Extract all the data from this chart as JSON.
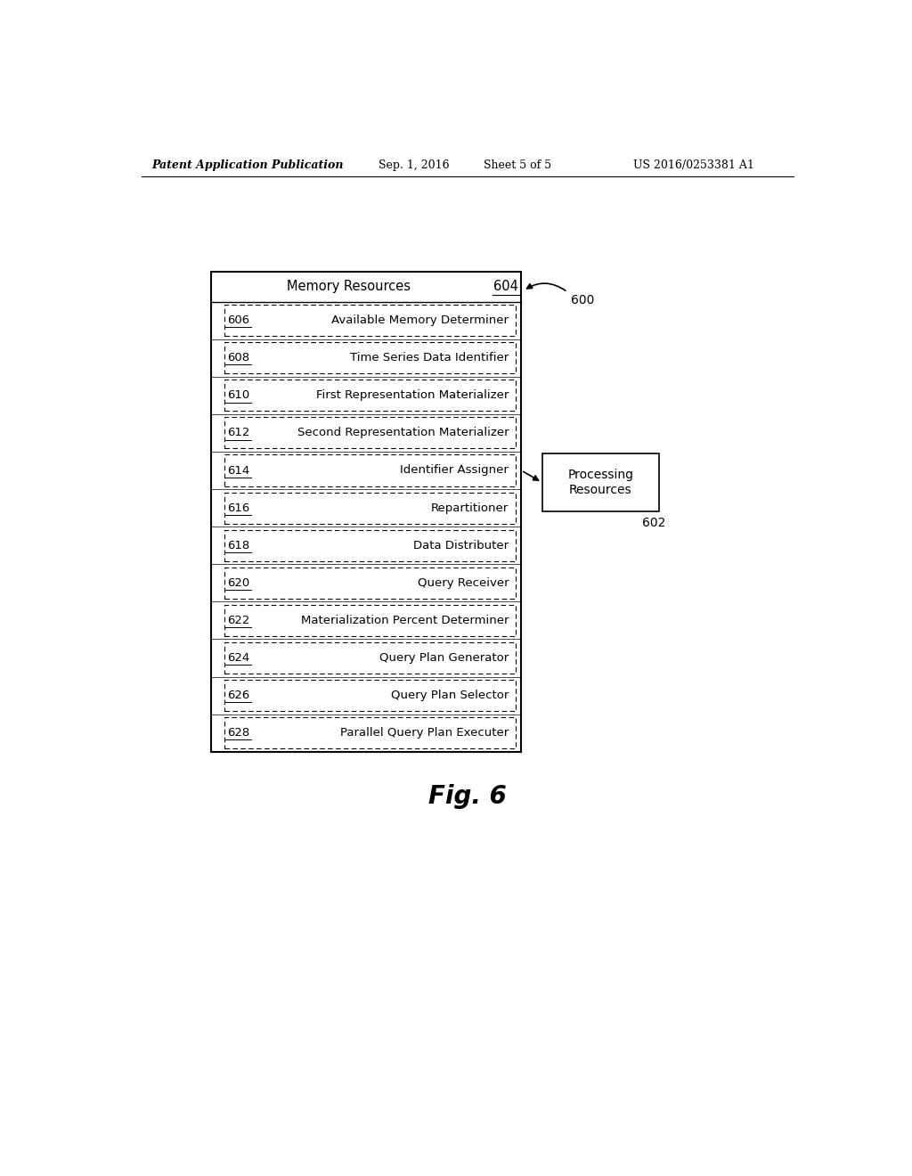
{
  "header_text": "Patent Application Publication",
  "header_date": "Sep. 1, 2016",
  "header_sheet": "Sheet 5 of 5",
  "header_patent": "US 2016/0253381 A1",
  "fig_label": "Fig. 6",
  "main_box_label": "Memory Resources",
  "main_box_id": "604",
  "main_box_id_600": "600",
  "processing_box_label": "Processing\nResources",
  "processing_box_id": "602",
  "rows": [
    {
      "id": "606",
      "label": "Available Memory Determiner"
    },
    {
      "id": "608",
      "label": "Time Series Data Identifier"
    },
    {
      "id": "610",
      "label": "First Representation Materializer"
    },
    {
      "id": "612",
      "label": "Second Representation Materializer"
    },
    {
      "id": "614",
      "label": "Identifier Assigner"
    },
    {
      "id": "616",
      "label": "Repartitioner"
    },
    {
      "id": "618",
      "label": "Data Distributer"
    },
    {
      "id": "620",
      "label": "Query Receiver"
    },
    {
      "id": "622",
      "label": "Materialization Percent Determiner"
    },
    {
      "id": "624",
      "label": "Query Plan Generator"
    },
    {
      "id": "626",
      "label": "Query Plan Selector"
    },
    {
      "id": "628",
      "label": "Parallel Query Plan Executer"
    }
  ],
  "bg_color": "#ffffff",
  "box_edge_color": "#000000",
  "text_color": "#000000",
  "font_size_header": 9,
  "font_size_body": 9.5,
  "font_size_fig": 20
}
